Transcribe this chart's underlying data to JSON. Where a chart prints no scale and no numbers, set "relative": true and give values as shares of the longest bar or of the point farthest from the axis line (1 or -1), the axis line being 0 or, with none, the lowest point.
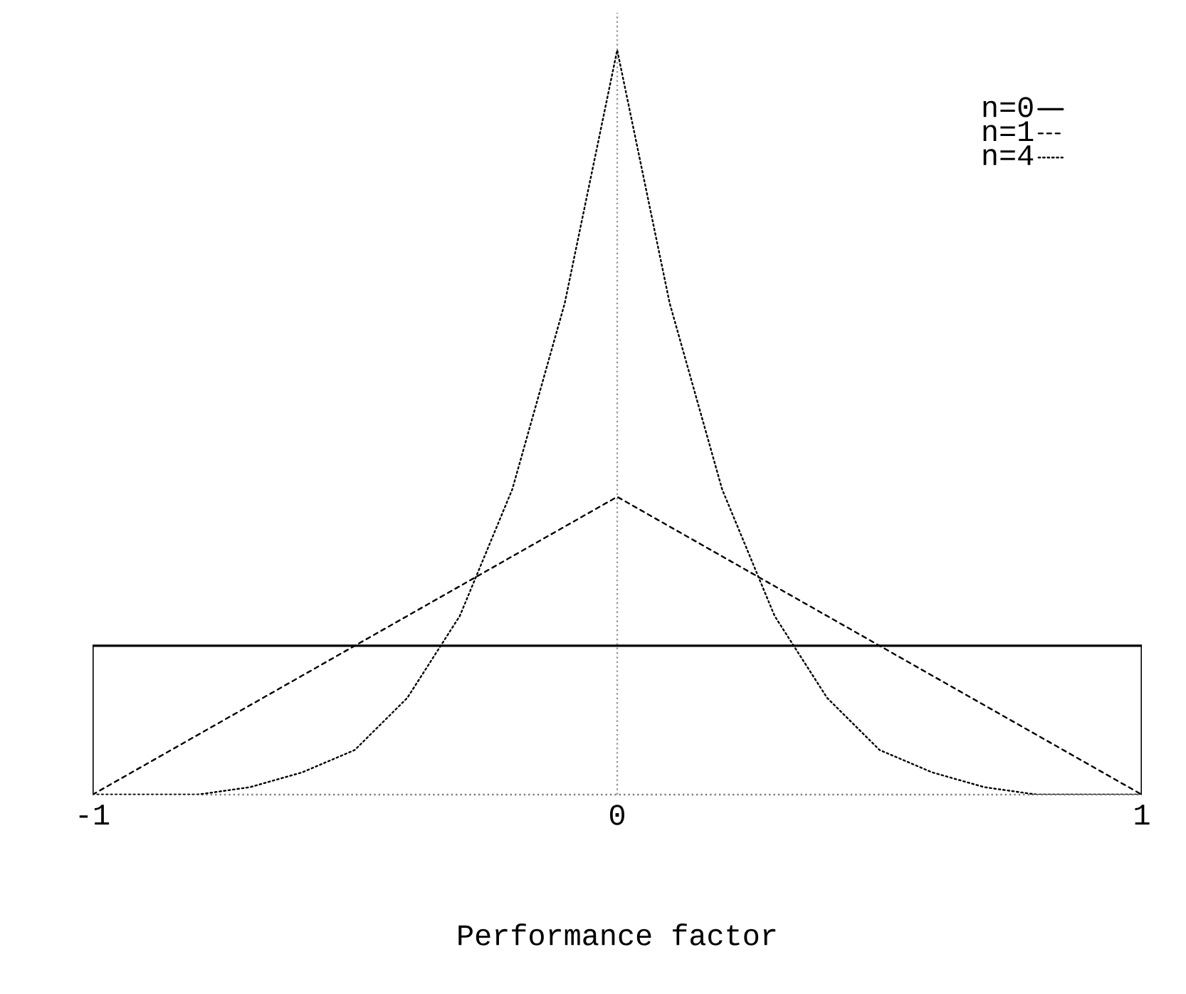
{
  "chart_data": {
    "type": "line",
    "relative": true,
    "xlabel": "Performance factor",
    "xlim": [
      -1,
      1
    ],
    "xticks": [
      -1,
      0,
      1
    ],
    "legend": "top right",
    "grid": false,
    "ref_lines": [
      {
        "axis": "x",
        "value": 0,
        "color": "#999999",
        "line_style": "dotted"
      }
    ],
    "series": [
      {
        "name": "n=0",
        "color": "#000000",
        "line_style": "solid",
        "x": [
          -1,
          -1,
          1,
          1
        ],
        "values": [
          0,
          0.2,
          0.2,
          0
        ]
      },
      {
        "name": "n=1",
        "color": "#000000",
        "line_style": "dashed",
        "x": [
          -1,
          0,
          1
        ],
        "values": [
          0,
          0.4,
          0
        ]
      },
      {
        "name": "n=4",
        "color": "#000000",
        "line_style": "dotted",
        "x": [
          -1,
          -0.9,
          -0.8,
          -0.7,
          -0.6,
          -0.5,
          -0.4,
          -0.3,
          -0.2,
          -0.1,
          0,
          0.1,
          0.2,
          0.3,
          0.4,
          0.5,
          0.6,
          0.7,
          0.8,
          0.9,
          1
        ],
        "values": [
          0,
          0,
          0,
          0.01,
          0.03,
          0.06,
          0.13,
          0.24,
          0.41,
          0.66,
          1,
          0.66,
          0.41,
          0.24,
          0.13,
          0.06,
          0.03,
          0.01,
          0,
          0,
          0
        ]
      }
    ]
  }
}
